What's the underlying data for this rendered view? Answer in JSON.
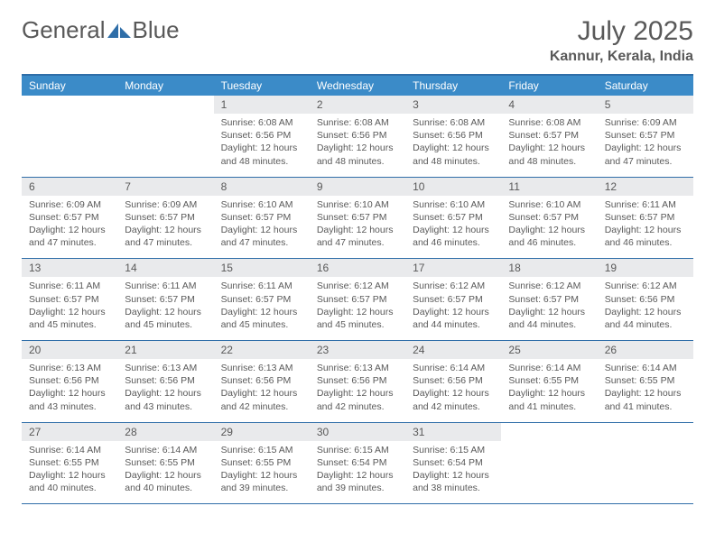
{
  "brand": {
    "text1": "General",
    "text2": "Blue",
    "iconColor": "#2f6ea8"
  },
  "title": "July 2025",
  "location": "Kannur, Kerala, India",
  "colors": {
    "headerBg": "#3b8bc8",
    "headerText": "#ffffff",
    "rule": "#2f6ea8",
    "dayNumBg": "#e9eaec",
    "bodyText": "#595959"
  },
  "weekdays": [
    "Sunday",
    "Monday",
    "Tuesday",
    "Wednesday",
    "Thursday",
    "Friday",
    "Saturday"
  ],
  "firstDayOffset": 2,
  "days": [
    {
      "n": 1,
      "sunrise": "6:08 AM",
      "sunset": "6:56 PM",
      "daylight": "12 hours and 48 minutes."
    },
    {
      "n": 2,
      "sunrise": "6:08 AM",
      "sunset": "6:56 PM",
      "daylight": "12 hours and 48 minutes."
    },
    {
      "n": 3,
      "sunrise": "6:08 AM",
      "sunset": "6:56 PM",
      "daylight": "12 hours and 48 minutes."
    },
    {
      "n": 4,
      "sunrise": "6:08 AM",
      "sunset": "6:57 PM",
      "daylight": "12 hours and 48 minutes."
    },
    {
      "n": 5,
      "sunrise": "6:09 AM",
      "sunset": "6:57 PM",
      "daylight": "12 hours and 47 minutes."
    },
    {
      "n": 6,
      "sunrise": "6:09 AM",
      "sunset": "6:57 PM",
      "daylight": "12 hours and 47 minutes."
    },
    {
      "n": 7,
      "sunrise": "6:09 AM",
      "sunset": "6:57 PM",
      "daylight": "12 hours and 47 minutes."
    },
    {
      "n": 8,
      "sunrise": "6:10 AM",
      "sunset": "6:57 PM",
      "daylight": "12 hours and 47 minutes."
    },
    {
      "n": 9,
      "sunrise": "6:10 AM",
      "sunset": "6:57 PM",
      "daylight": "12 hours and 47 minutes."
    },
    {
      "n": 10,
      "sunrise": "6:10 AM",
      "sunset": "6:57 PM",
      "daylight": "12 hours and 46 minutes."
    },
    {
      "n": 11,
      "sunrise": "6:10 AM",
      "sunset": "6:57 PM",
      "daylight": "12 hours and 46 minutes."
    },
    {
      "n": 12,
      "sunrise": "6:11 AM",
      "sunset": "6:57 PM",
      "daylight": "12 hours and 46 minutes."
    },
    {
      "n": 13,
      "sunrise": "6:11 AM",
      "sunset": "6:57 PM",
      "daylight": "12 hours and 45 minutes."
    },
    {
      "n": 14,
      "sunrise": "6:11 AM",
      "sunset": "6:57 PM",
      "daylight": "12 hours and 45 minutes."
    },
    {
      "n": 15,
      "sunrise": "6:11 AM",
      "sunset": "6:57 PM",
      "daylight": "12 hours and 45 minutes."
    },
    {
      "n": 16,
      "sunrise": "6:12 AM",
      "sunset": "6:57 PM",
      "daylight": "12 hours and 45 minutes."
    },
    {
      "n": 17,
      "sunrise": "6:12 AM",
      "sunset": "6:57 PM",
      "daylight": "12 hours and 44 minutes."
    },
    {
      "n": 18,
      "sunrise": "6:12 AM",
      "sunset": "6:57 PM",
      "daylight": "12 hours and 44 minutes."
    },
    {
      "n": 19,
      "sunrise": "6:12 AM",
      "sunset": "6:56 PM",
      "daylight": "12 hours and 44 minutes."
    },
    {
      "n": 20,
      "sunrise": "6:13 AM",
      "sunset": "6:56 PM",
      "daylight": "12 hours and 43 minutes."
    },
    {
      "n": 21,
      "sunrise": "6:13 AM",
      "sunset": "6:56 PM",
      "daylight": "12 hours and 43 minutes."
    },
    {
      "n": 22,
      "sunrise": "6:13 AM",
      "sunset": "6:56 PM",
      "daylight": "12 hours and 42 minutes."
    },
    {
      "n": 23,
      "sunrise": "6:13 AM",
      "sunset": "6:56 PM",
      "daylight": "12 hours and 42 minutes."
    },
    {
      "n": 24,
      "sunrise": "6:14 AM",
      "sunset": "6:56 PM",
      "daylight": "12 hours and 42 minutes."
    },
    {
      "n": 25,
      "sunrise": "6:14 AM",
      "sunset": "6:55 PM",
      "daylight": "12 hours and 41 minutes."
    },
    {
      "n": 26,
      "sunrise": "6:14 AM",
      "sunset": "6:55 PM",
      "daylight": "12 hours and 41 minutes."
    },
    {
      "n": 27,
      "sunrise": "6:14 AM",
      "sunset": "6:55 PM",
      "daylight": "12 hours and 40 minutes."
    },
    {
      "n": 28,
      "sunrise": "6:14 AM",
      "sunset": "6:55 PM",
      "daylight": "12 hours and 40 minutes."
    },
    {
      "n": 29,
      "sunrise": "6:15 AM",
      "sunset": "6:55 PM",
      "daylight": "12 hours and 39 minutes."
    },
    {
      "n": 30,
      "sunrise": "6:15 AM",
      "sunset": "6:54 PM",
      "daylight": "12 hours and 39 minutes."
    },
    {
      "n": 31,
      "sunrise": "6:15 AM",
      "sunset": "6:54 PM",
      "daylight": "12 hours and 38 minutes."
    }
  ],
  "labels": {
    "sunrise": "Sunrise:",
    "sunset": "Sunset:",
    "daylight": "Daylight:"
  }
}
